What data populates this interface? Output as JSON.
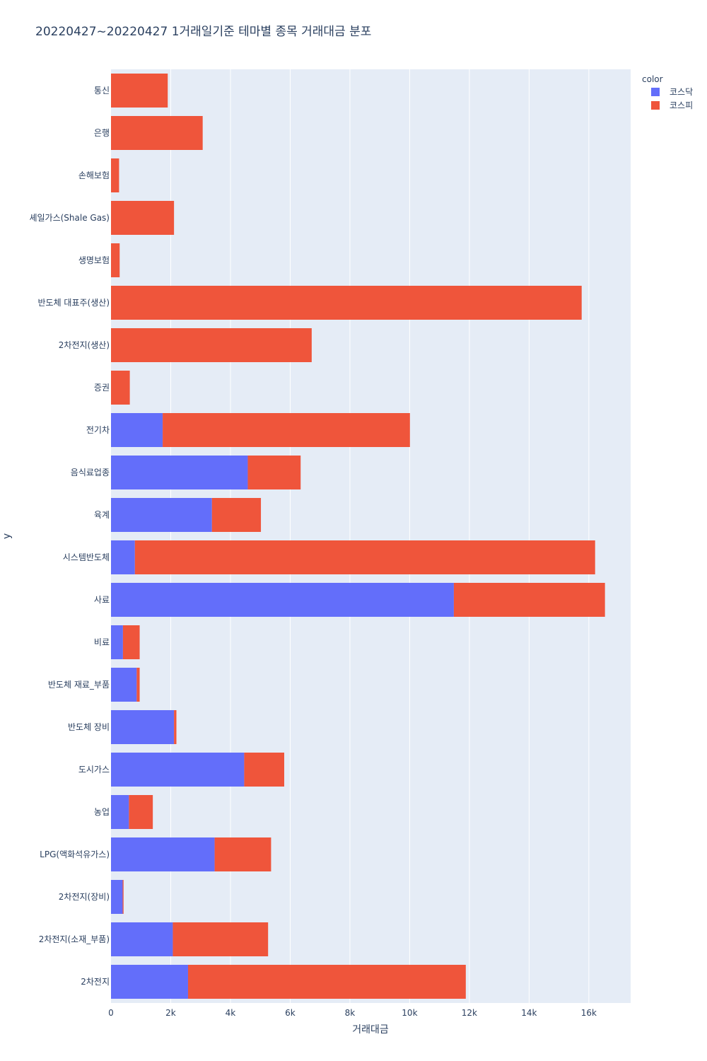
{
  "chart_data": {
    "type": "bar",
    "orientation": "horizontal",
    "barmode": "stack",
    "title": "20220427~20220427 1거래일기준 테마별 종목 거래대금 분포",
    "xlabel": "거래대금",
    "ylabel": "y",
    "xlim": [
      0,
      17400
    ],
    "x_ticks": [
      0,
      2000,
      4000,
      6000,
      8000,
      10000,
      12000,
      14000,
      16000
    ],
    "x_tick_labels": [
      "0",
      "2k",
      "4k",
      "6k",
      "8k",
      "10k",
      "12k",
      "14k",
      "16k"
    ],
    "grid": true,
    "legend": {
      "title": "color",
      "position": "top-right"
    },
    "categories": [
      "통신",
      "은행",
      "손해보험",
      "셰일가스(Shale Gas)",
      "생명보험",
      "반도체 대표주(생산)",
      "2차전지(생산)",
      "증권",
      "전기차",
      "음식료업종",
      "육계",
      "시스템반도체",
      "사료",
      "비료",
      "반도체 재료_부품",
      "반도체 장비",
      "도시가스",
      "농업",
      "LPG(액화석유가스)",
      "2차전지(장비)",
      "2차전지(소재_부품)",
      "2차전지"
    ],
    "series": [
      {
        "name": "코스닥",
        "color": "#636efa",
        "values": [
          0,
          0,
          0,
          0,
          0,
          0,
          0,
          0,
          1730,
          4580,
          3380,
          800,
          11480,
          400,
          860,
          2110,
          4460,
          600,
          3470,
          390,
          2070,
          2580
        ]
      },
      {
        "name": "코스피",
        "color": "#ef553b",
        "values": [
          1900,
          3070,
          270,
          2110,
          290,
          15760,
          6720,
          630,
          8280,
          1770,
          1640,
          15410,
          5060,
          560,
          100,
          80,
          1340,
          800,
          1890,
          30,
          3190,
          9300
        ]
      }
    ]
  }
}
